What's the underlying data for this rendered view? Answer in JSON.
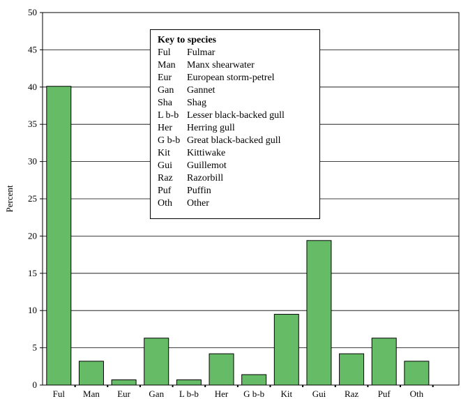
{
  "chart_data": {
    "type": "bar",
    "title": "",
    "xlabel": "",
    "ylabel": "Percent",
    "ylim": [
      0,
      50
    ],
    "yticks": [
      0,
      5,
      10,
      15,
      20,
      25,
      30,
      35,
      40,
      45,
      50
    ],
    "grid": true,
    "bar_color": "#66bb66",
    "categories": [
      "Ful",
      "Man",
      "Eur",
      "Gan",
      "L b-b",
      "Her",
      "G b-b",
      "Kit",
      "Gui",
      "Raz",
      "Puf",
      "Oth"
    ],
    "values": [
      40.1,
      3.2,
      0.7,
      6.3,
      0.7,
      4.2,
      1.4,
      9.5,
      19.4,
      4.2,
      6.3,
      3.2
    ]
  },
  "legend": {
    "title": "Key to species",
    "entries": [
      {
        "abbr": "Ful",
        "name": "Fulmar"
      },
      {
        "abbr": "Man",
        "name": "Manx shearwater"
      },
      {
        "abbr": "Eur",
        "name": "European storm-petrel"
      },
      {
        "abbr": "Gan",
        "name": "Gannet"
      },
      {
        "abbr": "Sha",
        "name": "Shag"
      },
      {
        "abbr": "L b-b",
        "name": "Lesser black-backed gull"
      },
      {
        "abbr": "Her",
        "name": "Herring gull"
      },
      {
        "abbr": "G b-b",
        "name": "Great black-backed gull"
      },
      {
        "abbr": "Kit",
        "name": "Kittiwake"
      },
      {
        "abbr": "Gui",
        "name": "Guillemot"
      },
      {
        "abbr": "Raz",
        "name": "Razorbill"
      },
      {
        "abbr": "Puf",
        "name": "Puffin"
      },
      {
        "abbr": "Oth",
        "name": "Other"
      }
    ]
  }
}
